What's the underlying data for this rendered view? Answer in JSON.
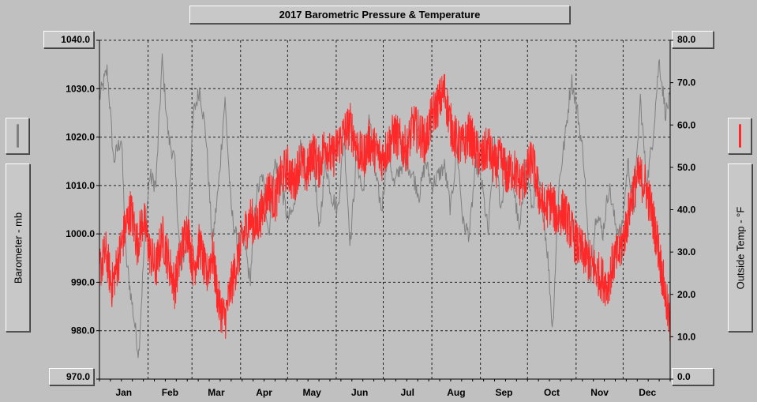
{
  "chart_data": {
    "type": "line",
    "title": "2017 Barometric Pressure & Temperature",
    "months": [
      "Jan",
      "Feb",
      "Mar",
      "Apr",
      "May",
      "Jun",
      "Jul",
      "Aug",
      "Sep",
      "Oct",
      "Nov",
      "Dec"
    ],
    "y_left": {
      "label": "Barometer - mb",
      "range": [
        970,
        1040
      ],
      "ticks": [
        "970.0",
        "980.0",
        "990.0",
        "1000.0",
        "1010.0",
        "1020.0",
        "1030.0",
        "1040.0"
      ]
    },
    "y_right": {
      "label": "Outside Temp - °F",
      "range": [
        0,
        80
      ],
      "ticks": [
        "0.0",
        "10.0",
        "20.0",
        "30.0",
        "40.0",
        "50.0",
        "60.0",
        "70.0",
        "80.0"
      ]
    },
    "grid": true,
    "series": [
      {
        "name": "Barometer - mb",
        "axis": "left",
        "color": "#808080",
        "x": [
          1,
          6,
          10,
          15,
          18,
          22,
          26,
          30,
          33,
          37,
          41,
          45,
          49,
          53,
          57,
          61,
          65,
          69,
          73,
          77,
          81,
          85,
          89,
          93,
          97,
          101,
          105,
          109,
          113,
          117,
          121,
          125,
          129,
          133,
          137,
          141,
          145,
          149,
          153,
          157,
          161,
          165,
          169,
          173,
          177,
          181,
          185,
          189,
          193,
          197,
          201,
          205,
          209,
          213,
          217,
          221,
          225,
          229,
          233,
          237,
          241,
          245,
          249,
          253,
          257,
          261,
          265,
          269,
          273,
          277,
          280,
          283,
          287,
          290,
          294,
          298,
          302,
          306,
          310,
          314,
          318,
          322,
          326,
          330,
          334,
          338,
          342,
          346,
          350,
          354,
          358,
          362,
          365
        ],
        "y": [
          1028,
          1034,
          1015,
          1020,
          995,
          985,
          975,
          1000,
          1012,
          1010,
          1036,
          1020,
          1015,
          992,
          1000,
          1025,
          1030,
          1020,
          998,
          1010,
          1028,
          1005,
          998,
          1000,
          990,
          1008,
          1012,
          1000,
          1015,
          1010,
          1003,
          1005,
          1018,
          1010,
          1020,
          1000,
          1015,
          1008,
          1005,
          1020,
          998,
          1016,
          1008,
          1025,
          1012,
          1005,
          1018,
          1010,
          1014,
          1015,
          1012,
          1008,
          1015,
          1010,
          1012,
          1014,
          1005,
          1018,
          1002,
          1000,
          1015,
          1010,
          1000,
          1020,
          1005,
          1015,
          1010,
          1000,
          1015,
          1005,
          1012,
          1008,
          995,
          980,
          1010,
          1020,
          1032,
          1025,
          1015,
          990,
          1005,
          1000,
          1010,
          1002,
          1000,
          1015,
          1005,
          1028,
          1010,
          1020,
          1036,
          1025,
          1028
        ]
      },
      {
        "name": "Outside Temp - °F",
        "axis": "right",
        "color": "#ff2828",
        "x": [
          1,
          5,
          9,
          13,
          17,
          21,
          25,
          29,
          33,
          37,
          41,
          45,
          49,
          53,
          57,
          61,
          65,
          69,
          73,
          77,
          81,
          85,
          89,
          93,
          97,
          101,
          105,
          109,
          113,
          117,
          121,
          125,
          129,
          133,
          137,
          141,
          145,
          149,
          153,
          157,
          161,
          165,
          169,
          173,
          177,
          181,
          185,
          189,
          193,
          197,
          201,
          205,
          209,
          213,
          217,
          221,
          225,
          229,
          233,
          237,
          241,
          245,
          249,
          253,
          257,
          261,
          265,
          269,
          273,
          277,
          281,
          285,
          289,
          293,
          297,
          301,
          305,
          309,
          313,
          317,
          321,
          325,
          329,
          333,
          337,
          341,
          345,
          349,
          353,
          357,
          361,
          365
        ],
        "y": [
          26,
          30,
          22,
          28,
          35,
          40,
          32,
          38,
          30,
          26,
          34,
          28,
          22,
          30,
          36,
          26,
          32,
          24,
          30,
          18,
          14,
          22,
          28,
          34,
          38,
          36,
          40,
          45,
          42,
          48,
          50,
          46,
          52,
          48,
          54,
          50,
          56,
          52,
          55,
          58,
          60,
          55,
          52,
          56,
          54,
          52,
          55,
          58,
          56,
          54,
          60,
          58,
          56,
          62,
          65,
          68,
          60,
          56,
          55,
          58,
          54,
          52,
          55,
          50,
          52,
          48,
          50,
          46,
          48,
          52,
          44,
          40,
          42,
          38,
          40,
          36,
          32,
          30,
          28,
          26,
          24,
          22,
          28,
          30,
          36,
          44,
          48,
          46,
          40,
          32,
          22,
          12
        ]
      }
    ]
  }
}
